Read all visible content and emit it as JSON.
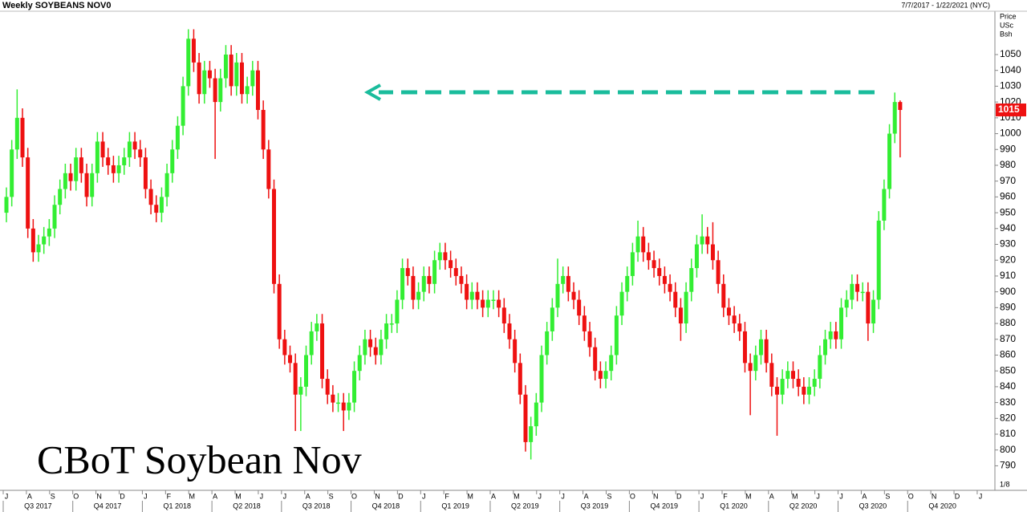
{
  "chart_data": {
    "type": "candlestick",
    "title": "Weekly SOYBEANS NOV0",
    "date_range": "7/7/2017 - 1/22/2021 (NYC)",
    "y_axis_label": [
      "Price",
      "USc",
      "Bsh"
    ],
    "annotation": "CBoT Soybean Nov",
    "corner_label": "1/8",
    "last_price": 1015,
    "up_color": "#33ee33",
    "down_color": "#ee1111",
    "last_price_color": "#ee1111",
    "ylim": [
      775,
      1084.5
    ],
    "yticks": [
      790,
      800,
      810,
      820,
      830,
      840,
      850,
      860,
      870,
      880,
      890,
      900,
      910,
      920,
      930,
      940,
      950,
      960,
      970,
      980,
      990,
      1000,
      1010,
      1020,
      1030,
      1040,
      1050
    ],
    "months": [
      "J",
      "A",
      "S",
      "O",
      "N",
      "D",
      "J",
      "F",
      "M",
      "A",
      "M",
      "J",
      "J",
      "A",
      "S",
      "O",
      "N",
      "D",
      "J",
      "F",
      "M",
      "A",
      "M",
      "J",
      "J",
      "A",
      "S",
      "O",
      "N",
      "D",
      "J",
      "F",
      "M",
      "A",
      "M",
      "J",
      "J",
      "A",
      "S",
      "O",
      "N",
      "D",
      "J"
    ],
    "quarters": [
      "Q3 2017",
      "Q4 2017",
      "Q1 2018",
      "Q2 2018",
      "Q3 2018",
      "Q4 2018",
      "Q1 2019",
      "Q2 2019",
      "Q3 2019",
      "Q4 2019",
      "Q1 2020",
      "Q2 2020",
      "Q3 2020",
      "Q4 2020"
    ],
    "ohlc": [
      [
        950,
        966,
        944,
        960
      ],
      [
        960,
        996,
        954,
        990
      ],
      [
        990,
        1028,
        984,
        1010
      ],
      [
        1010,
        1016,
        979,
        985
      ],
      [
        985,
        991,
        934,
        940
      ],
      [
        940,
        946,
        919,
        925
      ],
      [
        925,
        936,
        919,
        930
      ],
      [
        930,
        941,
        924,
        935
      ],
      [
        935,
        946,
        929,
        940
      ],
      [
        940,
        961,
        934,
        955
      ],
      [
        955,
        971,
        949,
        965
      ],
      [
        965,
        981,
        959,
        975
      ],
      [
        975,
        981,
        964,
        970
      ],
      [
        970,
        991,
        964,
        985
      ],
      [
        985,
        991,
        969,
        975
      ],
      [
        975,
        981,
        954,
        960
      ],
      [
        960,
        981,
        954,
        975
      ],
      [
        975,
        1001,
        969,
        995
      ],
      [
        995,
        1001,
        979,
        985
      ],
      [
        985,
        991,
        974,
        980
      ],
      [
        980,
        986,
        969,
        975
      ],
      [
        975,
        986,
        969,
        980
      ],
      [
        980,
        991,
        974,
        985
      ],
      [
        985,
        1001,
        979,
        995
      ],
      [
        995,
        1001,
        984,
        990
      ],
      [
        990,
        996,
        979,
        985
      ],
      [
        985,
        991,
        959,
        965
      ],
      [
        965,
        971,
        949,
        955
      ],
      [
        955,
        961,
        944,
        950
      ],
      [
        950,
        966,
        944,
        960
      ],
      [
        960,
        981,
        954,
        975
      ],
      [
        975,
        996,
        969,
        990
      ],
      [
        990,
        1011,
        984,
        1005
      ],
      [
        1005,
        1036,
        999,
        1030
      ],
      [
        1030,
        1066,
        1024,
        1060
      ],
      [
        1060,
        1066,
        1039,
        1045
      ],
      [
        1045,
        1051,
        1019,
        1025
      ],
      [
        1025,
        1046,
        1019,
        1040
      ],
      [
        1040,
        1046,
        1029,
        1035
      ],
      [
        1035,
        1041,
        984,
        1020
      ],
      [
        1020,
        1041,
        1014,
        1035
      ],
      [
        1035,
        1056,
        1029,
        1050
      ],
      [
        1050,
        1056,
        1024,
        1030
      ],
      [
        1030,
        1051,
        1024,
        1045
      ],
      [
        1045,
        1051,
        1019,
        1025
      ],
      [
        1025,
        1036,
        1019,
        1030
      ],
      [
        1030,
        1046,
        1024,
        1040
      ],
      [
        1040,
        1046,
        1009,
        1015
      ],
      [
        1015,
        1021,
        984,
        990
      ],
      [
        990,
        996,
        959,
        965
      ],
      [
        965,
        971,
        899,
        905
      ],
      [
        905,
        911,
        864,
        870
      ],
      [
        870,
        876,
        854,
        860
      ],
      [
        860,
        866,
        849,
        855
      ],
      [
        855,
        861,
        812,
        835
      ],
      [
        835,
        846,
        812,
        840
      ],
      [
        840,
        866,
        834,
        860
      ],
      [
        860,
        881,
        854,
        875
      ],
      [
        875,
        886,
        869,
        880
      ],
      [
        880,
        886,
        839,
        845
      ],
      [
        845,
        851,
        829,
        835
      ],
      [
        835,
        841,
        824,
        830
      ],
      [
        830,
        836,
        824,
        830
      ],
      [
        830,
        836,
        812,
        825
      ],
      [
        825,
        836,
        819,
        830
      ],
      [
        830,
        856,
        824,
        850
      ],
      [
        850,
        866,
        844,
        860
      ],
      [
        860,
        876,
        854,
        870
      ],
      [
        870,
        876,
        859,
        865
      ],
      [
        865,
        871,
        854,
        860
      ],
      [
        860,
        876,
        854,
        870
      ],
      [
        870,
        886,
        864,
        880
      ],
      [
        880,
        886,
        874,
        880
      ],
      [
        880,
        901,
        874,
        895
      ],
      [
        895,
        921,
        889,
        915
      ],
      [
        915,
        921,
        904,
        910
      ],
      [
        910,
        916,
        889,
        895
      ],
      [
        895,
        906,
        889,
        900
      ],
      [
        900,
        916,
        894,
        910
      ],
      [
        910,
        916,
        899,
        905
      ],
      [
        905,
        926,
        899,
        920
      ],
      [
        920,
        931,
        914,
        925
      ],
      [
        925,
        931,
        914,
        920
      ],
      [
        920,
        926,
        909,
        915
      ],
      [
        915,
        921,
        904,
        910
      ],
      [
        910,
        916,
        899,
        905
      ],
      [
        905,
        911,
        889,
        895
      ],
      [
        895,
        906,
        889,
        900
      ],
      [
        900,
        906,
        889,
        895
      ],
      [
        895,
        901,
        884,
        890
      ],
      [
        890,
        901,
        884,
        895
      ],
      [
        895,
        901,
        889,
        895
      ],
      [
        895,
        901,
        884,
        890
      ],
      [
        890,
        896,
        874,
        880
      ],
      [
        880,
        886,
        864,
        870
      ],
      [
        870,
        876,
        849,
        855
      ],
      [
        855,
        861,
        829,
        835
      ],
      [
        835,
        841,
        799,
        805
      ],
      [
        805,
        821,
        794,
        815
      ],
      [
        815,
        836,
        809,
        830
      ],
      [
        830,
        866,
        824,
        860
      ],
      [
        860,
        881,
        854,
        875
      ],
      [
        875,
        896,
        869,
        890
      ],
      [
        890,
        921,
        884,
        905
      ],
      [
        905,
        916,
        899,
        910
      ],
      [
        910,
        916,
        894,
        900
      ],
      [
        900,
        906,
        889,
        895
      ],
      [
        895,
        901,
        879,
        885
      ],
      [
        885,
        891,
        869,
        875
      ],
      [
        875,
        881,
        859,
        865
      ],
      [
        865,
        871,
        844,
        850
      ],
      [
        850,
        856,
        839,
        845
      ],
      [
        845,
        856,
        839,
        850
      ],
      [
        850,
        866,
        844,
        860
      ],
      [
        860,
        891,
        854,
        885
      ],
      [
        885,
        906,
        879,
        900
      ],
      [
        900,
        916,
        894,
        910
      ],
      [
        910,
        931,
        904,
        925
      ],
      [
        925,
        945,
        919,
        935
      ],
      [
        935,
        941,
        919,
        925
      ],
      [
        925,
        931,
        914,
        920
      ],
      [
        920,
        926,
        909,
        915
      ],
      [
        915,
        921,
        904,
        910
      ],
      [
        910,
        916,
        899,
        905
      ],
      [
        905,
        911,
        894,
        900
      ],
      [
        900,
        906,
        884,
        890
      ],
      [
        890,
        896,
        869,
        880
      ],
      [
        880,
        906,
        874,
        900
      ],
      [
        900,
        921,
        894,
        915
      ],
      [
        915,
        936,
        909,
        930
      ],
      [
        930,
        949,
        924,
        935
      ],
      [
        935,
        941,
        924,
        930
      ],
      [
        930,
        944,
        914,
        920
      ],
      [
        920,
        926,
        899,
        905
      ],
      [
        905,
        911,
        884,
        890
      ],
      [
        890,
        896,
        879,
        885
      ],
      [
        885,
        891,
        874,
        880
      ],
      [
        880,
        886,
        869,
        875
      ],
      [
        875,
        881,
        849,
        855
      ],
      [
        855,
        861,
        822,
        850
      ],
      [
        850,
        866,
        844,
        860
      ],
      [
        860,
        876,
        854,
        870
      ],
      [
        870,
        876,
        849,
        855
      ],
      [
        855,
        861,
        834,
        840
      ],
      [
        840,
        846,
        809,
        835
      ],
      [
        835,
        851,
        829,
        845
      ],
      [
        845,
        856,
        839,
        850
      ],
      [
        850,
        856,
        839,
        845
      ],
      [
        845,
        851,
        834,
        840
      ],
      [
        840,
        846,
        829,
        835
      ],
      [
        835,
        846,
        829,
        840
      ],
      [
        840,
        851,
        834,
        845
      ],
      [
        845,
        866,
        839,
        860
      ],
      [
        860,
        876,
        854,
        870
      ],
      [
        870,
        881,
        864,
        875
      ],
      [
        875,
        881,
        864,
        870
      ],
      [
        870,
        896,
        864,
        890
      ],
      [
        890,
        901,
        884,
        895
      ],
      [
        895,
        911,
        889,
        905
      ],
      [
        905,
        911,
        894,
        900
      ],
      [
        900,
        906,
        894,
        900
      ],
      [
        900,
        906,
        869,
        880
      ],
      [
        880,
        901,
        874,
        895
      ],
      [
        895,
        951,
        889,
        945
      ],
      [
        945,
        971,
        939,
        965
      ],
      [
        965,
        1006,
        959,
        1000
      ],
      [
        1000,
        1026,
        994,
        1020
      ],
      [
        1020,
        1021,
        985,
        1015
      ]
    ]
  }
}
